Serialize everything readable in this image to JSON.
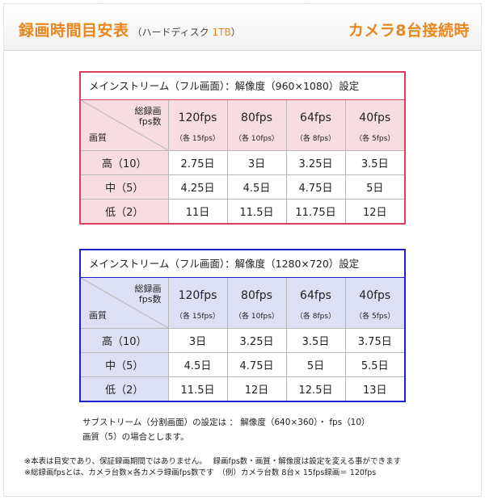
{
  "header": {
    "title": "録画時間目安表",
    "subtitle_prefix": "（ハードディスク ",
    "subtitle_capacity": "1TB",
    "subtitle_suffix": "）",
    "right_title": "カメラ8台接続時"
  },
  "corner": {
    "top_line1": "総録画",
    "top_line2": "fps数",
    "bottom": "画質"
  },
  "fps_columns": [
    {
      "fps": "120fps",
      "each": "（各 15fps）"
    },
    {
      "fps": "80fps",
      "each": "（各 10fps）"
    },
    {
      "fps": "64fps",
      "each": "（各 8fps）"
    },
    {
      "fps": "40fps",
      "each": "（各 5fps）"
    }
  ],
  "table1": {
    "caption": "メインストリーム（フル画面）：解像度（960×1080）設定",
    "rows": [
      {
        "label": "高（10）",
        "values": [
          "2.75日",
          "3日",
          "3.25日",
          "3.5日"
        ]
      },
      {
        "label": "中（5）",
        "values": [
          "4.25日",
          "4.5日",
          "4.75日",
          "5日"
        ]
      },
      {
        "label": "低（2）",
        "values": [
          "11日",
          "11.5日",
          "11.75日",
          "12日"
        ]
      }
    ]
  },
  "table2": {
    "caption": "メインストリーム（フル画面）：解像度（1280×720）設定",
    "rows": [
      {
        "label": "高（10）",
        "values": [
          "3日",
          "3.25日",
          "3.5日",
          "3.75日"
        ]
      },
      {
        "label": "中（5）",
        "values": [
          "4.5日",
          "4.75日",
          "5日",
          "5.5日"
        ]
      },
      {
        "label": "低（2）",
        "values": [
          "11.5日",
          "12日",
          "12.5日",
          "13日"
        ]
      }
    ]
  },
  "notes": {
    "line1": "サブストリーム（分割画面）の設定は ： 解像度（640×360）・ fps（10）",
    "line2": "画質（5）の場合とします。"
  },
  "footnotes": {
    "line1": "※本表は目安であり、保証録画期間ではありません。　 録画fps数・画質・解像度は設定を変える事ができます",
    "line2": "※総録画fpsとは、カメラ台数×各カメラ録画fps数です　（例）カメラ台数 8台× 15fps録画＝ 120fps"
  },
  "colors": {
    "accent": "#e8871e",
    "table1_border": "#d9405f",
    "table2_border": "#2020c8",
    "table1_fill": "#f7dde2",
    "table2_fill": "#dde0f5"
  }
}
